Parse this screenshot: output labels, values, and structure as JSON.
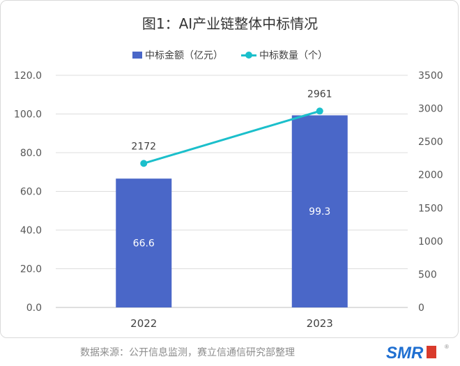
{
  "title": "图1：AI产业链整体中标情况",
  "legend": {
    "bar_label": "中标金额（亿元）",
    "line_label": "中标数量（个）"
  },
  "source": "数据来源：公开信息监测，赛立信通信研究部整理",
  "logo_text": "SMR",
  "colors": {
    "bar": "#4a67c8",
    "line": "#1bbfcb",
    "grid": "#dcdcdc",
    "axis_text": "#555555"
  },
  "chart_data": {
    "type": "bar+line",
    "categories": [
      "2022",
      "2023"
    ],
    "series": [
      {
        "name": "中标金额（亿元）",
        "type": "bar",
        "axis": "left",
        "values": [
          66.6,
          99.3
        ],
        "labels": [
          "66.6",
          "99.3"
        ]
      },
      {
        "name": "中标数量（个）",
        "type": "line",
        "axis": "right",
        "values": [
          2172,
          2961
        ],
        "labels": [
          "2172",
          "2961"
        ]
      }
    ],
    "left_axis": {
      "min": 0,
      "max": 120,
      "ticks": [
        "0.0",
        "20.0",
        "40.0",
        "60.0",
        "80.0",
        "100.0",
        "120.0"
      ]
    },
    "right_axis": {
      "min": 0,
      "max": 3500,
      "ticks": [
        "0",
        "500",
        "1000",
        "1500",
        "2000",
        "2500",
        "3000",
        "3500"
      ]
    },
    "grid": true,
    "legend_position": "top"
  }
}
